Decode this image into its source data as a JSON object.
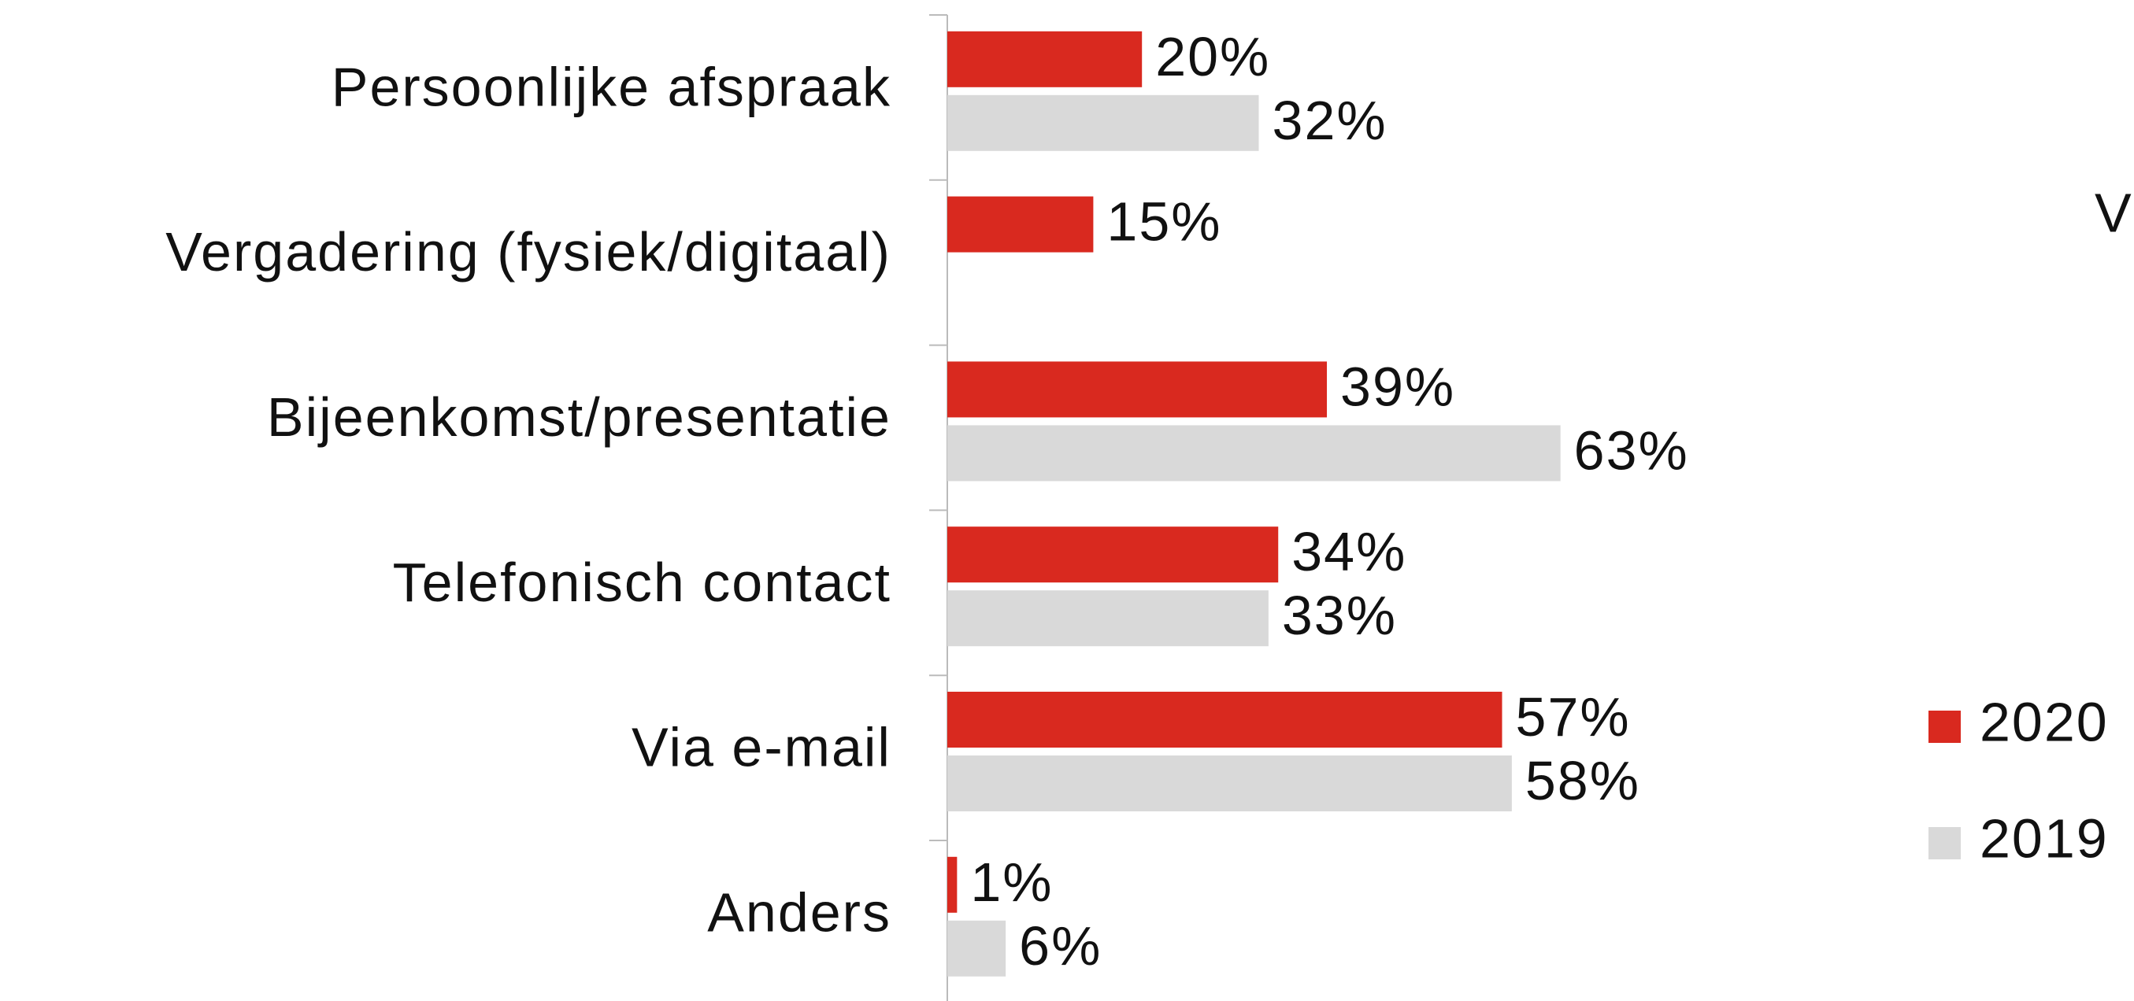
{
  "chart_data": {
    "type": "bar",
    "orientation": "horizontal",
    "title": "V",
    "categories": [
      "Persoonlijke afspraak",
      "Vergadering (fysiek/digitaal)",
      "Bijeenkomst/presentatie",
      "Telefonisch contact",
      "Via e-mail",
      "Anders"
    ],
    "series": [
      {
        "name": "2020",
        "color": "#d9291f",
        "values": [
          20,
          15,
          39,
          34,
          57,
          1
        ],
        "value_labels": [
          "20%",
          "15%",
          "39%",
          "34%",
          "57%",
          "1%"
        ]
      },
      {
        "name": "2019",
        "color": "#d9d9d9",
        "values": [
          32,
          null,
          63,
          33,
          58,
          6
        ],
        "value_labels": [
          "32%",
          null,
          "63%",
          "33%",
          "58%",
          "6%"
        ]
      }
    ],
    "legend": "right"
  }
}
